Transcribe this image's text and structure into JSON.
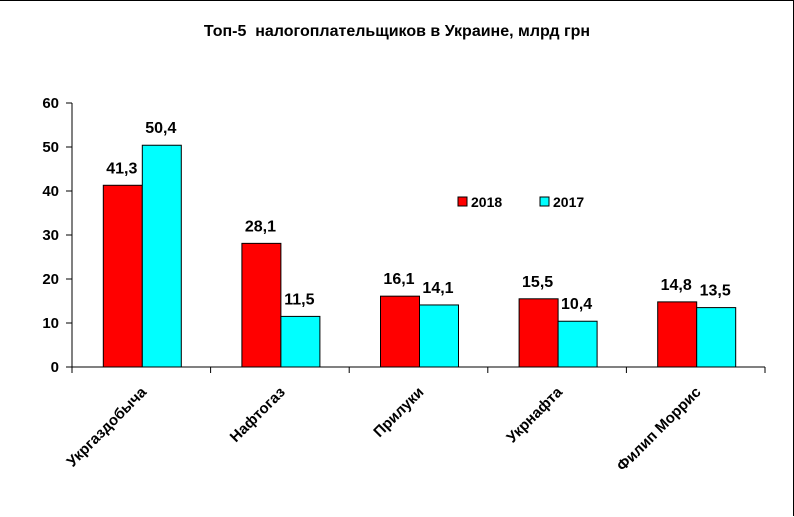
{
  "chart_data": {
    "type": "bar",
    "title": "Топ-5  налогоплательщиков в Украине, млрд грн",
    "categories": [
      "Укргаздобыча",
      "Нафтогаз",
      "Прилуки",
      "Укрнафта",
      "Филип Моррис"
    ],
    "series": [
      {
        "name": "2018",
        "values": [
          41.3,
          28.1,
          16.1,
          15.5,
          14.8
        ],
        "labels": [
          "41,3",
          "28,1",
          "16,1",
          "15,5",
          "14,8"
        ],
        "color": "#ff0000"
      },
      {
        "name": "2017",
        "values": [
          50.4,
          11.5,
          14.1,
          10.4,
          13.5
        ],
        "labels": [
          "50,4",
          "11,5",
          "14,1",
          "10,4",
          "13,5"
        ],
        "color": "#00ffff"
      }
    ],
    "yticks": [
      "0",
      "10",
      "20",
      "30",
      "40",
      "50",
      "60"
    ],
    "ylim": [
      0,
      60
    ],
    "xlabel": "",
    "ylabel": "",
    "grid": false,
    "legend_position": "upper-right"
  }
}
